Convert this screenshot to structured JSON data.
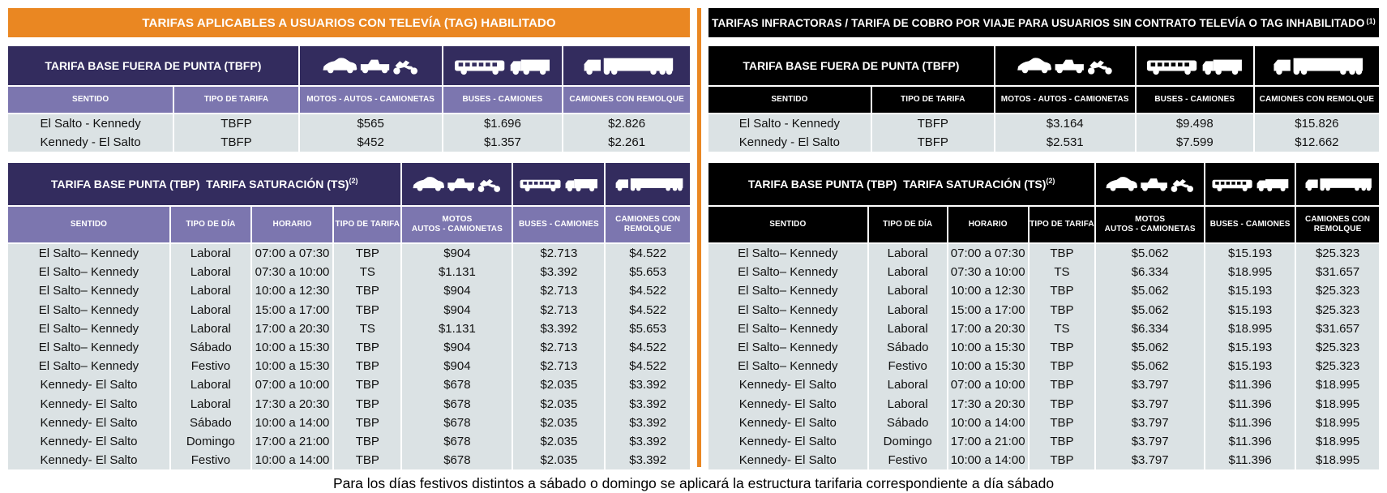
{
  "colors": {
    "orange": "#ea8722",
    "navy": "#332c5e",
    "purple": "#7c76af",
    "black": "#000000",
    "row_bg": "#dbe2e4"
  },
  "icons": {
    "autos": "car-pickup-motorcycle-icon",
    "buses": "bus-truck-icon",
    "remolque": "semitrailer-truck-icon"
  },
  "footer_note": "Para los días festivos distintos a sábado o domingo se aplicará la estructura tarifaria correspondiente a día sábado",
  "left": {
    "title": "TARIFAS APLICABLES A USUARIOS CON TELEVÍA (TAG) HABILITADO",
    "table_offpeak": {
      "header": "TARIFA BASE FUERA DE PUNTA (TBFP)",
      "columns": [
        "SENTIDO",
        "TIPO DE TARIFA",
        "MOTOS - AUTOS - CAMIONETAS",
        "BUSES - CAMIONES",
        "CAMIONES CON REMOLQUE"
      ],
      "rows": [
        [
          "El Salto - Kennedy",
          "TBFP",
          "$565",
          "$1.696",
          "$2.826"
        ],
        [
          "Kennedy - El Salto",
          "TBFP",
          "$452",
          "$1.357",
          "$2.261"
        ]
      ]
    },
    "table_peak": {
      "header": "TARIFA BASE PUNTA (TBP)  TARIFA SATURACIÓN (TS)",
      "header_sup": "(2)",
      "columns": [
        "SENTIDO",
        "TIPO DE DÍA",
        "HORARIO",
        "TIPO DE TARIFA",
        "MOTOS\nAUTOS - CAMIONETAS",
        "BUSES - CAMIONES",
        "CAMIONES CON\nREMOLQUE"
      ],
      "rows": [
        [
          "El Salto– Kennedy",
          "Laboral",
          "07:00 a 07:30",
          "TBP",
          "$904",
          "$2.713",
          "$4.522"
        ],
        [
          "El Salto– Kennedy",
          "Laboral",
          "07:30 a 10:00",
          "TS",
          "$1.131",
          "$3.392",
          "$5.653"
        ],
        [
          "El Salto– Kennedy",
          "Laboral",
          "10:00 a 12:30",
          "TBP",
          "$904",
          "$2.713",
          "$4.522"
        ],
        [
          "El Salto– Kennedy",
          "Laboral",
          "15:00 a 17:00",
          "TBP",
          "$904",
          "$2.713",
          "$4.522"
        ],
        [
          "El Salto– Kennedy",
          "Laboral",
          "17:00 a 20:30",
          "TS",
          "$1.131",
          "$3.392",
          "$5.653"
        ],
        [
          "El Salto– Kennedy",
          "Sábado",
          "10:00 a 15:30",
          "TBP",
          "$904",
          "$2.713",
          "$4.522"
        ],
        [
          "El Salto– Kennedy",
          "Festivo",
          "10:00 a 15:30",
          "TBP",
          "$904",
          "$2.713",
          "$4.522"
        ],
        [
          "Kennedy- El Salto",
          "Laboral",
          "07:00 a 10:00",
          "TBP",
          "$678",
          "$2.035",
          "$3.392"
        ],
        [
          "Kennedy- El Salto",
          "Laboral",
          "17:30 a 20:30",
          "TBP",
          "$678",
          "$2.035",
          "$3.392"
        ],
        [
          "Kennedy- El Salto",
          "Sábado",
          "10:00 a 14:00",
          "TBP",
          "$678",
          "$2.035",
          "$3.392"
        ],
        [
          "Kennedy- El Salto",
          "Domingo",
          "17:00 a 21:00",
          "TBP",
          "$678",
          "$2.035",
          "$3.392"
        ],
        [
          "Kennedy- El Salto",
          "Festivo",
          "10:00 a 14:00",
          "TBP",
          "$678",
          "$2.035",
          "$3.392"
        ]
      ]
    }
  },
  "right": {
    "title": "TARIFAS INFRACTORAS / TARIFA DE COBRO POR VIAJE PARA USUARIOS SIN CONTRATO TELEVÍA O TAG INHABILITADO",
    "title_sup": "(1)",
    "table_offpeak": {
      "header": "TARIFA BASE FUERA DE PUNTA (TBFP)",
      "columns": [
        "SENTIDO",
        "TIPO DE TARIFA",
        "MOTOS - AUTOS - CAMIONETAS",
        "BUSES - CAMIONES",
        "CAMIONES CON REMOLQUE"
      ],
      "rows": [
        [
          "El Salto - Kennedy",
          "TBFP",
          "$3.164",
          "$9.498",
          "$15.826"
        ],
        [
          "Kennedy - El Salto",
          "TBFP",
          "$2.531",
          "$7.599",
          "$12.662"
        ]
      ]
    },
    "table_peak": {
      "header": "TARIFA BASE PUNTA (TBP)  TARIFA SATURACIÓN (TS)",
      "header_sup": "(2)",
      "columns": [
        "SENTIDO",
        "TIPO DE DÍA",
        "HORARIO",
        "TIPO DE TARIFA",
        "MOTOS\nAUTOS - CAMIONETAS",
        "BUSES - CAMIONES",
        "CAMIONES CON\nREMOLQUE"
      ],
      "rows": [
        [
          "El Salto– Kennedy",
          "Laboral",
          "07:00 a 07:30",
          "TBP",
          "$5.062",
          "$15.193",
          "$25.323"
        ],
        [
          "El Salto– Kennedy",
          "Laboral",
          "07:30 a 10:00",
          "TS",
          "$6.334",
          "$18.995",
          "$31.657"
        ],
        [
          "El Salto– Kennedy",
          "Laboral",
          "10:00 a 12:30",
          "TBP",
          "$5.062",
          "$15.193",
          "$25.323"
        ],
        [
          "El Salto– Kennedy",
          "Laboral",
          "15:00 a 17:00",
          "TBP",
          "$5.062",
          "$15.193",
          "$25.323"
        ],
        [
          "El Salto– Kennedy",
          "Laboral",
          "17:00 a 20:30",
          "TS",
          "$6.334",
          "$18.995",
          "$31.657"
        ],
        [
          "El Salto– Kennedy",
          "Sábado",
          "10:00 a 15:30",
          "TBP",
          "$5.062",
          "$15.193",
          "$25.323"
        ],
        [
          "El Salto– Kennedy",
          "Festivo",
          "10:00 a 15:30",
          "TBP",
          "$5.062",
          "$15.193",
          "$25.323"
        ],
        [
          "Kennedy- El Salto",
          "Laboral",
          "07:00 a 10:00",
          "TBP",
          "$3.797",
          "$11.396",
          "$18.995"
        ],
        [
          "Kennedy- El Salto",
          "Laboral",
          "17:30 a 20:30",
          "TBP",
          "$3.797",
          "$11.396",
          "$18.995"
        ],
        [
          "Kennedy- El Salto",
          "Sábado",
          "10:00 a 14:00",
          "TBP",
          "$3.797",
          "$11.396",
          "$18.995"
        ],
        [
          "Kennedy- El Salto",
          "Domingo",
          "17:00 a 21:00",
          "TBP",
          "$3.797",
          "$11.396",
          "$18.995"
        ],
        [
          "Kennedy- El Salto",
          "Festivo",
          "10:00 a 14:00",
          "TBP",
          "$3.797",
          "$11.396",
          "$18.995"
        ]
      ]
    }
  }
}
